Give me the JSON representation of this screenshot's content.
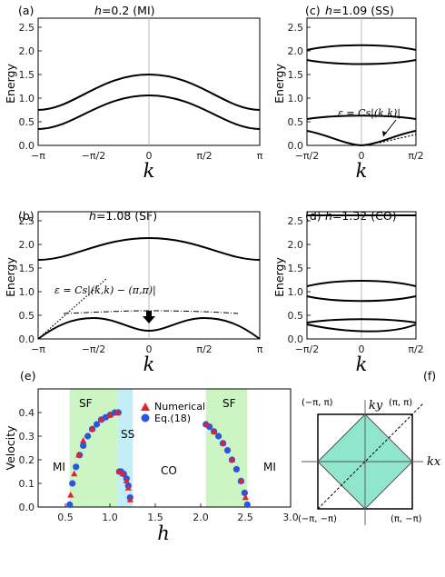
{
  "panels": {
    "a": {
      "tag": "(a)",
      "hvar": "h",
      "hval": "=0.2",
      "phase": "(MI)"
    },
    "b": {
      "tag": "(b)",
      "hvar": "h",
      "hval": "=1.08",
      "phase": "(SF)",
      "annotation": "ε = Cs|(k,k) − (π,π)|"
    },
    "c": {
      "tag": "(c)",
      "hvar": "h",
      "hval": "=1.09",
      "phase": "(SS)",
      "annotation": "ε = Cs|(k,k)|"
    },
    "d": {
      "tag": "(d)",
      "hvar": "h",
      "hval": "=1.32",
      "phase": "(CO)"
    },
    "e": {
      "tag": "(e)"
    },
    "f": {
      "tag": "(f)"
    }
  },
  "labels": {
    "energy": "Energy",
    "k": "k",
    "velocity": "Velocity",
    "h": "h",
    "kx": "kx",
    "ky": "ky"
  },
  "ticks": {
    "energy": [
      "0.0",
      "0.5",
      "1.0",
      "1.5",
      "2.0",
      "2.5"
    ],
    "k_full": [
      "−π",
      "−π/2",
      "0",
      "π/2",
      "π"
    ],
    "k_half": [
      "−π/2",
      "0",
      "π/2"
    ],
    "velocity": [
      "0.0",
      "0.1",
      "0.2",
      "0.3",
      "0.4"
    ],
    "h": [
      "0.5",
      "1.0",
      "1.5",
      "2.0",
      "2.5",
      "3.0"
    ]
  },
  "phase_labels": {
    "mi_left": "MI",
    "sf_left": "SF",
    "ss": "SS",
    "co": "CO",
    "sf_right": "SF",
    "mi_right": "MI"
  },
  "legend": {
    "numerical": "Numerical",
    "eq": "Eq.(18)"
  },
  "bz_labels": {
    "tl": "(−π, π)",
    "tr": "(π, π)",
    "bl": "(−π, −π)",
    "br": "(π, −π)"
  },
  "colors": {
    "sf_region": "#ccf5c4",
    "ss_region": "#c4eef7",
    "numerical": "#e8202a",
    "eq": "#2a55e0",
    "bz_fill": "#8fe6cc"
  },
  "chart_data": [
    {
      "type": "line",
      "panel": "a",
      "title": "h=0.2 (MI)",
      "xlabel": "k",
      "ylabel": "Energy",
      "xlim": [
        "-pi",
        "pi"
      ],
      "ylim": [
        0,
        2.7
      ],
      "series": [
        {
          "x": [
            -3.1416,
            -1.5708,
            0,
            1.5708,
            3.1416
          ],
          "values": [
            0.35,
            0.7,
            1.05,
            0.7,
            0.35
          ]
        },
        {
          "x": [
            -3.1416,
            -1.5708,
            0,
            1.5708,
            3.1416
          ],
          "values": [
            0.75,
            1.1,
            1.48,
            1.1,
            0.75
          ]
        }
      ]
    },
    {
      "type": "line",
      "panel": "b",
      "title": "h=1.08 (SF)",
      "xlabel": "k",
      "ylabel": "Energy",
      "xlim": [
        "-pi",
        "pi"
      ],
      "ylim": [
        0,
        2.7
      ],
      "series": [
        {
          "x": [
            -3.1416,
            -1.5708,
            0,
            1.5708,
            3.1416
          ],
          "values": [
            1.68,
            1.9,
            2.12,
            1.9,
            1.68
          ]
        },
        {
          "x": [
            -3.1416,
            -2.36,
            -1.5708,
            -0.6,
            0,
            0.6,
            1.5708,
            2.36,
            3.1416
          ],
          "values": [
            0.0,
            0.33,
            0.43,
            0.28,
            0.17,
            0.28,
            0.43,
            0.33,
            0.0
          ]
        }
      ]
    },
    {
      "type": "line",
      "panel": "c",
      "title": "h=1.09 (SS)",
      "xlabel": "k",
      "ylabel": "Energy",
      "xlim": [
        "-pi/2",
        "pi/2"
      ],
      "ylim": [
        0,
        2.7
      ],
      "series": [
        {
          "x": [
            -1.5708,
            0,
            1.5708
          ],
          "values": [
            2.02,
            2.12,
            2.02
          ]
        },
        {
          "x": [
            -1.5708,
            0,
            1.5708
          ],
          "values": [
            1.78,
            1.66,
            1.78
          ]
        },
        {
          "x": [
            -1.5708,
            0,
            1.5708
          ],
          "values": [
            0.4,
            0.48,
            0.4
          ]
        },
        {
          "x": [
            -1.5708,
            -0.8,
            0,
            0.8,
            1.5708
          ],
          "values": [
            0.3,
            0.14,
            0.0,
            0.14,
            0.3
          ]
        }
      ]
    },
    {
      "type": "line",
      "panel": "d",
      "title": "h=1.32 (CO)",
      "xlabel": "k",
      "ylabel": "Energy",
      "xlim": [
        "-pi/2",
        "pi/2"
      ],
      "ylim": [
        0,
        2.7
      ],
      "series": [
        {
          "x": [
            -1.5708,
            0,
            1.5708
          ],
          "values": [
            2.62,
            2.62,
            2.62
          ]
        },
        {
          "x": [
            -1.5708,
            0,
            1.5708
          ],
          "values": [
            1.12,
            1.24,
            1.12
          ]
        },
        {
          "x": [
            -1.5708,
            0,
            1.5708
          ],
          "values": [
            0.9,
            0.78,
            0.9
          ]
        },
        {
          "x": [
            -1.5708,
            0,
            1.5708
          ],
          "values": [
            0.35,
            0.46,
            0.35
          ]
        },
        {
          "x": [
            -1.5708,
            0,
            1.5708
          ],
          "values": [
            0.28,
            0.1,
            0.28
          ]
        }
      ]
    },
    {
      "type": "scatter",
      "panel": "e",
      "xlabel": "h",
      "ylabel": "Velocity",
      "xlim": [
        0.2,
        3.0
      ],
      "ylim": [
        0,
        0.5
      ],
      "series": [
        {
          "name": "Numerical",
          "x": [
            0.56,
            0.6,
            0.65,
            0.7,
            0.8,
            0.9,
            1.0,
            1.08,
            1.1,
            1.14,
            1.18,
            1.2,
            1.22,
            2.07,
            2.15,
            2.25,
            2.35,
            2.45,
            2.5
          ],
          "values": [
            0.05,
            0.14,
            0.22,
            0.28,
            0.33,
            0.37,
            0.39,
            0.4,
            0.15,
            0.14,
            0.11,
            0.08,
            0.03,
            0.35,
            0.32,
            0.27,
            0.2,
            0.11,
            0.04
          ]
        },
        {
          "name": "Eq.(18)",
          "x": [
            0.55,
            0.58,
            0.62,
            0.66,
            0.7,
            0.75,
            0.8,
            0.85,
            0.9,
            0.95,
            1.0,
            1.05,
            1.09,
            1.1,
            1.12,
            1.15,
            1.18,
            1.2,
            1.22,
            2.06,
            2.1,
            2.15,
            2.2,
            2.25,
            2.3,
            2.35,
            2.4,
            2.45,
            2.49,
            2.52
          ],
          "values": [
            0.01,
            0.1,
            0.17,
            0.22,
            0.26,
            0.3,
            0.33,
            0.35,
            0.37,
            0.38,
            0.39,
            0.4,
            0.4,
            0.15,
            0.15,
            0.14,
            0.12,
            0.09,
            0.04,
            0.35,
            0.34,
            0.32,
            0.3,
            0.27,
            0.24,
            0.2,
            0.16,
            0.11,
            0.06,
            0.01
          ]
        }
      ],
      "regions": [
        {
          "label": "SF",
          "from": 0.55,
          "to": 1.08
        },
        {
          "label": "SS",
          "from": 1.08,
          "to": 1.25
        },
        {
          "label": "SF",
          "from": 2.06,
          "to": 2.52
        }
      ]
    }
  ]
}
